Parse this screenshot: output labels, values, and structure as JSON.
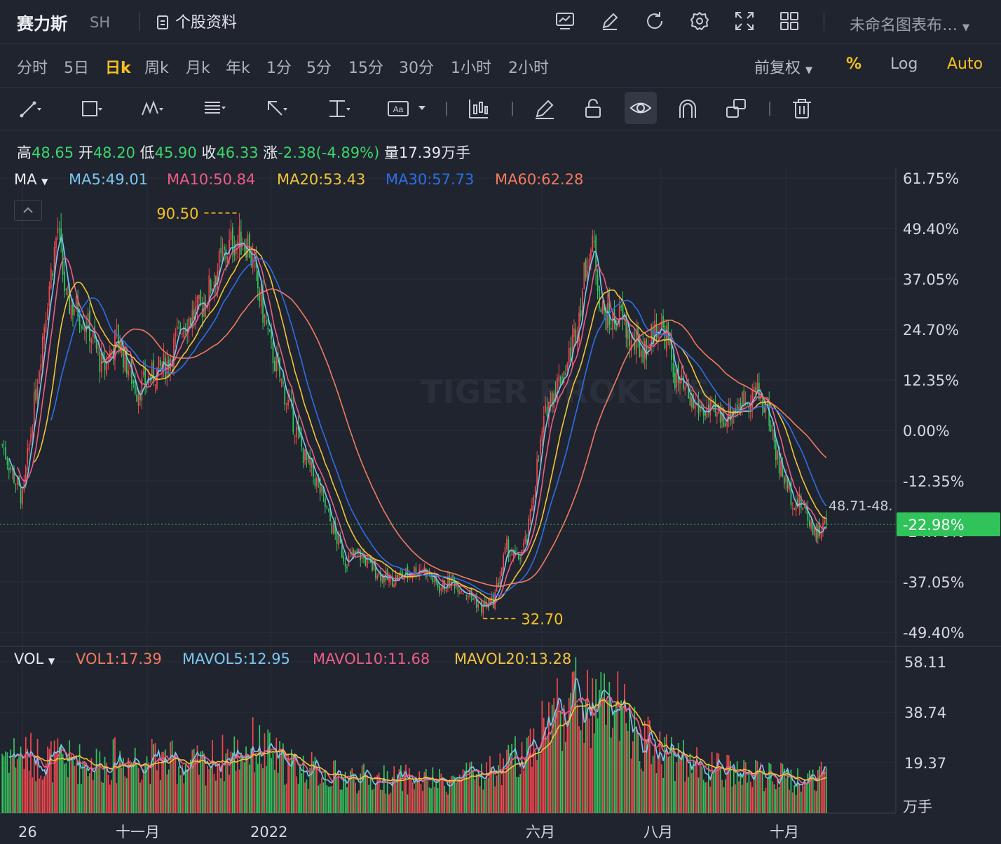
{
  "header": {
    "stock_name": "赛力斯",
    "market": "SH",
    "profile_label": "个股资料",
    "layout_name": "未命名图表布…",
    "icons": [
      "chart-icon",
      "draw-icon",
      "refresh-icon",
      "settings-icon",
      "fullscreen-icon",
      "layout-grid-icon"
    ]
  },
  "periods": [
    "分时",
    "5日",
    "日k",
    "周k",
    "月k",
    "年k",
    "1分",
    "5分",
    "15分",
    "30分",
    "1小时",
    "2小时"
  ],
  "active_period": "日k",
  "right_controls": {
    "adjust": "前复权",
    "percent": "%",
    "log": "Log",
    "auto": "Auto"
  },
  "colors": {
    "up": "#f0484e",
    "down": "#35c45c",
    "accent": "#f5c021",
    "ma5": "#7cc6f2",
    "ma10": "#ee5c86",
    "ma20": "#f2c43a",
    "ma30": "#2e6ee6",
    "ma60": "#f37a60",
    "price_badge": "#2fc35a"
  },
  "toolbar_icons": [
    "trend-line-icon",
    "rectangle-icon",
    "pattern-icon",
    "fib-icon",
    "arrow-icon",
    "measure-icon",
    "text-icon",
    "indicator-icon",
    "pencil-icon",
    "lock-icon",
    "eye-icon",
    "magnet-icon",
    "clone-icon",
    "trash-icon"
  ],
  "ohlc": {
    "high_label": "高",
    "high": "48.65",
    "open_label": "开",
    "open": "48.20",
    "low_label": "低",
    "low": "45.90",
    "close_label": "收",
    "close": "46.33",
    "change_label": "涨",
    "change": "-2.38(-4.89%)",
    "volume_label": "量",
    "volume": "17.39万手"
  },
  "ma_legend": {
    "name": "MA",
    "items": [
      {
        "label": "MA5:49.01"
      },
      {
        "label": "MA10:50.84"
      },
      {
        "label": "MA20:53.43"
      },
      {
        "label": "MA30:57.73"
      },
      {
        "label": "MA60:62.28"
      }
    ]
  },
  "vol_legend": {
    "name": "VOL",
    "items": [
      {
        "label": "VOL1:17.39"
      },
      {
        "label": "MAVOL5:12.95"
      },
      {
        "label": "MAVOL10:11.68"
      },
      {
        "label": "MAVOL20:13.28"
      }
    ]
  },
  "chart_data": {
    "type": "candlestick",
    "watermark": "TIGER BROKERS",
    "y_axis_ticks": [
      "61.75%",
      "49.40%",
      "37.05%",
      "24.70%",
      "12.35%",
      "0.00%",
      "-12.35%",
      "-24.70%",
      "-37.05%",
      "-49.40%"
    ],
    "current_change": "-22.98%",
    "range_label": "48.71-48.",
    "volume_axis_ticks": [
      "58.11",
      "38.74",
      "19.37"
    ],
    "volume_unit": "万手",
    "x_axis_ticks": [
      "26",
      "十一月",
      "2022",
      "六月",
      "八月",
      "十月"
    ],
    "high_marker": "90.50",
    "low_marker": "32.70",
    "price_at_zero_pct": 60.16,
    "current_close": 46.33,
    "ylim_pct": [
      -49.4,
      61.75
    ],
    "volume_ylim": [
      0,
      58.11
    ],
    "price_keypoints": [
      [
        0,
        58
      ],
      [
        12,
        50
      ],
      [
        20,
        66
      ],
      [
        27,
        80
      ],
      [
        33,
        90
      ],
      [
        38,
        79
      ],
      [
        45,
        78
      ],
      [
        52,
        75
      ],
      [
        60,
        69
      ],
      [
        68,
        74
      ],
      [
        80,
        66
      ],
      [
        88,
        68
      ],
      [
        98,
        70
      ],
      [
        107,
        76
      ],
      [
        118,
        78
      ],
      [
        128,
        84
      ],
      [
        137,
        88
      ],
      [
        146,
        88
      ],
      [
        152,
        81
      ],
      [
        160,
        72
      ],
      [
        170,
        64
      ],
      [
        180,
        56
      ],
      [
        188,
        52
      ],
      [
        196,
        46
      ],
      [
        204,
        41
      ],
      [
        212,
        42
      ],
      [
        220,
        40
      ],
      [
        230,
        38
      ],
      [
        240,
        39
      ],
      [
        250,
        40
      ],
      [
        260,
        37
      ],
      [
        268,
        38
      ],
      [
        278,
        36
      ],
      [
        285,
        34
      ],
      [
        292,
        35
      ],
      [
        300,
        43
      ],
      [
        306,
        41
      ],
      [
        312,
        44
      ],
      [
        318,
        55
      ],
      [
        324,
        64
      ],
      [
        330,
        67
      ],
      [
        336,
        70
      ],
      [
        342,
        76
      ],
      [
        348,
        86
      ],
      [
        352,
        87
      ],
      [
        356,
        78
      ],
      [
        362,
        76
      ],
      [
        368,
        77
      ],
      [
        374,
        73
      ],
      [
        382,
        72
      ],
      [
        390,
        76
      ],
      [
        395,
        74
      ],
      [
        400,
        68
      ],
      [
        410,
        64
      ],
      [
        418,
        63
      ],
      [
        428,
        62
      ],
      [
        438,
        64
      ],
      [
        448,
        66
      ],
      [
        455,
        63
      ],
      [
        462,
        55
      ],
      [
        470,
        50
      ],
      [
        476,
        49
      ],
      [
        484,
        45
      ],
      [
        490,
        46.33
      ]
    ],
    "volume_keypoints": [
      [
        0,
        24
      ],
      [
        15,
        22
      ],
      [
        35,
        20
      ],
      [
        55,
        19
      ],
      [
        75,
        21
      ],
      [
        95,
        20
      ],
      [
        115,
        18
      ],
      [
        135,
        22
      ],
      [
        150,
        26
      ],
      [
        165,
        20
      ],
      [
        180,
        17
      ],
      [
        200,
        14
      ],
      [
        220,
        13
      ],
      [
        240,
        13
      ],
      [
        260,
        12
      ],
      [
        280,
        14
      ],
      [
        300,
        18
      ],
      [
        318,
        30
      ],
      [
        330,
        40
      ],
      [
        340,
        44
      ],
      [
        350,
        38
      ],
      [
        360,
        42
      ],
      [
        372,
        34
      ],
      [
        385,
        26
      ],
      [
        395,
        24
      ],
      [
        405,
        20
      ],
      [
        420,
        17
      ],
      [
        440,
        15
      ],
      [
        460,
        14
      ],
      [
        475,
        12
      ],
      [
        490,
        17.39
      ]
    ]
  }
}
